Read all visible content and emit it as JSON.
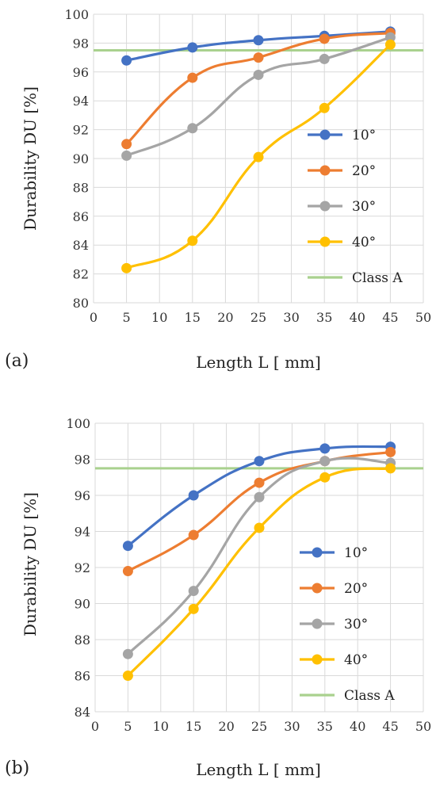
{
  "panels": [
    {
      "label": "(a)",
      "chart_data": {
        "type": "line",
        "xlabel": "Length L [ mm]",
        "ylabel": "Durability DU [%]",
        "xlim": [
          0,
          50
        ],
        "ylim": [
          80,
          100
        ],
        "x_ticks": [
          0,
          5,
          10,
          15,
          20,
          25,
          30,
          35,
          40,
          45,
          50
        ],
        "y_ticks": [
          80,
          82,
          84,
          86,
          88,
          90,
          92,
          94,
          96,
          98,
          100
        ],
        "grid": true,
        "legend_position": "right-middle",
        "x": [
          5,
          15,
          25,
          35,
          45
        ],
        "series": [
          {
            "name": "10°",
            "color": "#4472C4",
            "values": [
              96.8,
              97.7,
              98.2,
              98.5,
              98.8
            ]
          },
          {
            "name": "20°",
            "color": "#ED7D31",
            "values": [
              91.0,
              95.6,
              97.0,
              98.3,
              98.7
            ]
          },
          {
            "name": "30°",
            "color": "#A5A5A5",
            "values": [
              90.2,
              92.1,
              95.8,
              96.9,
              98.4
            ]
          },
          {
            "name": "40°",
            "color": "#FFC000",
            "values": [
              82.4,
              84.3,
              90.1,
              93.5,
              97.9
            ]
          }
        ],
        "reference_line": {
          "name": "Class A",
          "color": "#A9D18E",
          "value": 97.5
        }
      }
    },
    {
      "label": "(b)",
      "chart_data": {
        "type": "line",
        "xlabel": "Length L [ mm]",
        "ylabel": "Durability DU [%]",
        "xlim": [
          0,
          50
        ],
        "ylim": [
          84,
          100
        ],
        "x_ticks": [
          0,
          5,
          10,
          15,
          20,
          25,
          30,
          35,
          40,
          45,
          50
        ],
        "y_ticks": [
          84,
          86,
          88,
          90,
          92,
          94,
          96,
          98,
          100
        ],
        "grid": true,
        "legend_position": "right-middle",
        "x": [
          5,
          15,
          25,
          35,
          45
        ],
        "series": [
          {
            "name": "10°",
            "color": "#4472C4",
            "values": [
              93.2,
              96.0,
              97.9,
              98.6,
              98.7
            ]
          },
          {
            "name": "20°",
            "color": "#ED7D31",
            "values": [
              91.8,
              93.8,
              96.7,
              97.9,
              98.4
            ]
          },
          {
            "name": "30°",
            "color": "#A5A5A5",
            "values": [
              87.2,
              90.7,
              95.9,
              97.9,
              97.8
            ]
          },
          {
            "name": "40°",
            "color": "#FFC000",
            "values": [
              86.0,
              89.7,
              94.2,
              97.0,
              97.5
            ]
          }
        ],
        "reference_line": {
          "name": "Class A",
          "color": "#A9D18E",
          "value": 97.5
        }
      }
    }
  ]
}
